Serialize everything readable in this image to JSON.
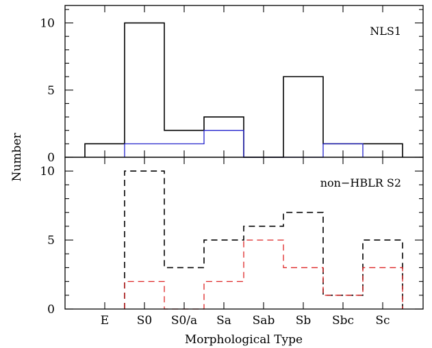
{
  "chart_data": [
    {
      "type": "histogram",
      "panel_label": "NLS1",
      "bins": [
        "E",
        "S0",
        "S0/a",
        "Sa",
        "Sab",
        "Sb",
        "Sbc",
        "Sc"
      ],
      "ylim": [
        0,
        11.3
      ],
      "yticks": [
        0,
        5,
        10
      ],
      "series": [
        {
          "values": [
            1,
            10,
            2,
            3,
            0,
            6,
            1,
            1
          ],
          "color": "#000000",
          "style": "solid"
        },
        {
          "values": [
            0,
            1,
            1,
            2,
            0,
            0,
            1,
            0
          ],
          "color": "#2222cc",
          "style": "solid"
        }
      ]
    },
    {
      "type": "histogram",
      "panel_label": "non−HBLR S2",
      "bins": [
        "E",
        "S0",
        "S0/a",
        "Sa",
        "Sab",
        "Sb",
        "Sbc",
        "Sc"
      ],
      "ylim": [
        0,
        11
      ],
      "yticks": [
        0,
        5,
        10
      ],
      "series": [
        {
          "values": [
            0,
            10,
            3,
            5,
            6,
            7,
            1,
            5
          ],
          "color": "#000000",
          "style": "dashed"
        },
        {
          "values": [
            0,
            2,
            0,
            2,
            5,
            3,
            1,
            3
          ],
          "color": "#dd2222",
          "style": "dashed"
        }
      ]
    }
  ],
  "xlabel": "Morphological Type",
  "ylabel": "Number"
}
